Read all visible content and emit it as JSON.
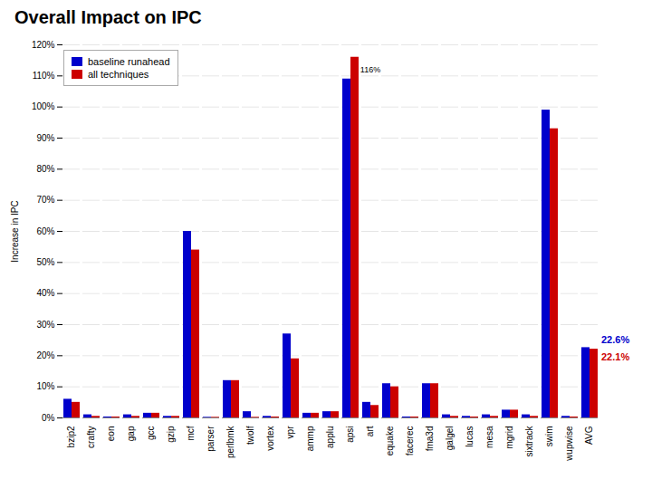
{
  "chart_data": {
    "type": "bar",
    "title": "Overall Impact on IPC",
    "ylabel": "Increase in IPC",
    "categories": [
      "bzip2",
      "crafty",
      "eon",
      "gap",
      "gcc",
      "gzip",
      "mcf",
      "parser",
      "perlbmk",
      "twolf",
      "vortex",
      "vpr",
      "ammp",
      "applu",
      "apsi",
      "art",
      "equake",
      "facerec",
      "fma3d",
      "galgel",
      "lucas",
      "mesa",
      "mgrid",
      "sixtrack",
      "swim",
      "wupwise",
      "AVG"
    ],
    "series": [
      {
        "name": "baseline runahead",
        "color": "#0000CC",
        "values": [
          6,
          1,
          0.3,
          1,
          1.5,
          0.5,
          60,
          0.2,
          12,
          2,
          0.5,
          27,
          1.5,
          2,
          109,
          5,
          11,
          0.3,
          11,
          1,
          0.5,
          1,
          2.5,
          1,
          99,
          0.5,
          22.6
        ]
      },
      {
        "name": "all techniques",
        "color": "#CC0000",
        "values": [
          5,
          0.5,
          0.3,
          0.5,
          1.5,
          0.5,
          54,
          0.2,
          12,
          0.2,
          0.3,
          19,
          1.5,
          2,
          116,
          4,
          10,
          0.3,
          11,
          0.5,
          0.3,
          0.5,
          2.5,
          0.5,
          93,
          0.3,
          22.1
        ]
      }
    ],
    "ylim": [
      0,
      120
    ],
    "yticks": [
      {
        "value": 0,
        "label": "0%"
      },
      {
        "value": 10,
        "label": "10%"
      },
      {
        "value": 20,
        "label": "20%"
      },
      {
        "value": 30,
        "label": "30%"
      },
      {
        "value": 40,
        "label": "40%"
      },
      {
        "value": 50,
        "label": "50%"
      },
      {
        "value": 60,
        "label": "60%"
      },
      {
        "value": 70,
        "label": "70%"
      },
      {
        "value": 80,
        "label": "80%"
      },
      {
        "value": 90,
        "label": "90%"
      },
      {
        "value": 100,
        "label": "100%"
      },
      {
        "value": 110,
        "label": "110%"
      },
      {
        "value": 120,
        "label": "120%"
      }
    ],
    "grid": true,
    "legend": "upper left",
    "annotations": [
      {
        "text": "116%",
        "x": "art",
        "y": 111
      },
      {
        "text": "22.6%",
        "x": "AVG",
        "y": 24.0,
        "color": "#0000CC"
      },
      {
        "text": "22.1%",
        "x": "AVG",
        "y": 18.5,
        "color": "#CC0000"
      }
    ]
  }
}
